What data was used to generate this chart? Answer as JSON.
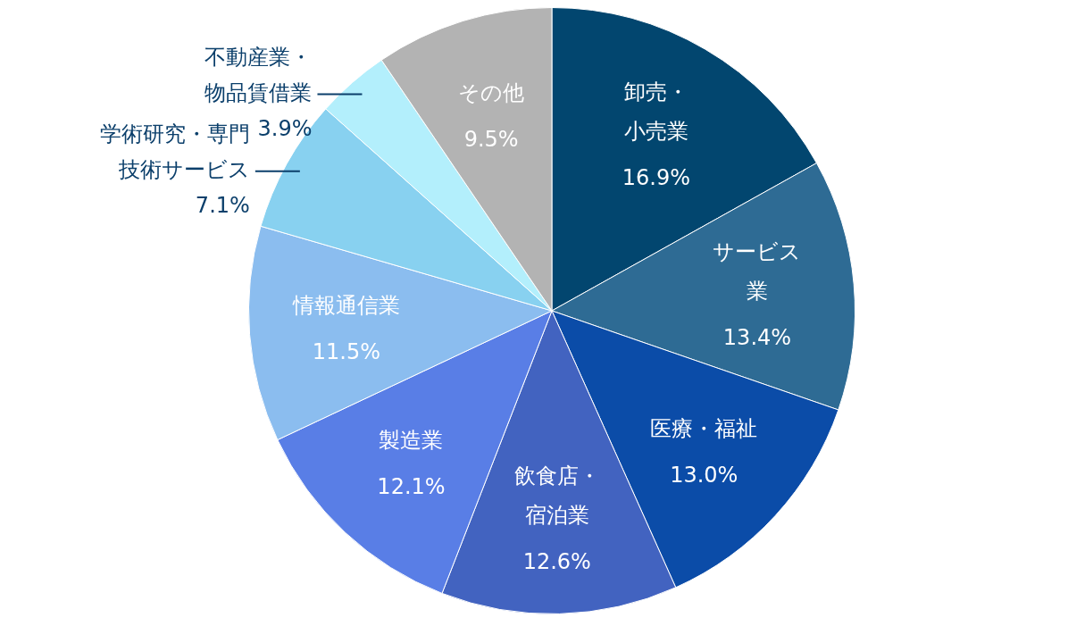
{
  "chart_data": {
    "type": "pie",
    "categories": [
      "卸売・小売業",
      "サービス業",
      "医療・福祉",
      "飲食店・宿泊業",
      "製造業",
      "情報通信業",
      "学術研究・専門技術サービス",
      "不動産業・物品賃借業",
      "その他"
    ],
    "values": [
      16.9,
      13.4,
      13.0,
      12.6,
      12.1,
      11.5,
      7.1,
      3.9,
      9.5
    ],
    "value_labels": [
      "16.9%",
      "13.4%",
      "13.0%",
      "12.6%",
      "12.1%",
      "11.5%",
      "7.1%",
      "3.9%",
      "9.5%"
    ],
    "colors": [
      "#02466f",
      "#2e6b94",
      "#0b4ca8",
      "#4263c0",
      "#597ee6",
      "#8bbdef",
      "#88d1f0",
      "#b3effc",
      "#b3b3b3"
    ],
    "legend": false
  }
}
